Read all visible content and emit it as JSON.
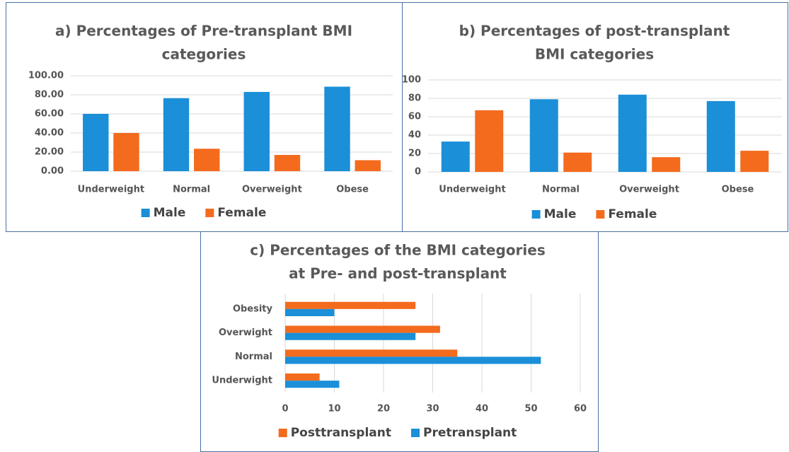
{
  "chart_data": [
    {
      "type": "bar",
      "title": [
        "a) Percentages of Pre-transplant BMI",
        "categories"
      ],
      "categories": [
        "Underweight",
        "Normal",
        "Overweight",
        "Obese"
      ],
      "series": [
        {
          "name": "Male",
          "color": "#1b8fd8",
          "values": [
            60,
            76.5,
            83,
            88.5
          ]
        },
        {
          "name": "Female",
          "color": "#f46b1e",
          "values": [
            40,
            23.5,
            17,
            11.5
          ]
        }
      ],
      "ylim": [
        0,
        100
      ],
      "yticks": [
        {
          "value": 0,
          "label": "0.00"
        },
        {
          "value": 20,
          "label": "20.00"
        },
        {
          "value": 40,
          "label": "40.00"
        },
        {
          "value": 60,
          "label": "60.00"
        },
        {
          "value": 80,
          "label": "80.00"
        },
        {
          "value": 100,
          "label": "100.00"
        }
      ],
      "grid": true,
      "legend": "bottom"
    },
    {
      "type": "bar",
      "title": [
        "b) Percentages of post-transplant",
        "BMI categories"
      ],
      "categories": [
        "Underweight",
        "Normal",
        "Overweight",
        "Obese"
      ],
      "series": [
        {
          "name": "Male",
          "color": "#1b8fd8",
          "values": [
            33,
            79,
            84,
            77
          ]
        },
        {
          "name": "Female",
          "color": "#f46b1e",
          "values": [
            67,
            21,
            16,
            23
          ]
        }
      ],
      "ylim": [
        0,
        100
      ],
      "yticks": [
        0,
        20,
        40,
        60,
        80,
        100
      ],
      "grid": true,
      "legend": "bottom"
    },
    {
      "type": "hbar",
      "title": [
        "c) Percentages of the BMI categories",
        "at Pre- and post-transplant"
      ],
      "categories": [
        "Underwight",
        "Normal",
        "Overwight",
        "Obesity"
      ],
      "series": [
        {
          "name": "Posttransplant",
          "color": "#f46b1e",
          "values": [
            7,
            35,
            31.5,
            26.5
          ]
        },
        {
          "name": "Pretransplant",
          "color": "#1b8fd8",
          "values": [
            11,
            52,
            26.5,
            10
          ]
        }
      ],
      "xlim": [
        0,
        60
      ],
      "xticks": [
        0,
        10,
        20,
        30,
        40,
        50,
        60
      ],
      "grid": true,
      "legend": "bottom"
    }
  ]
}
